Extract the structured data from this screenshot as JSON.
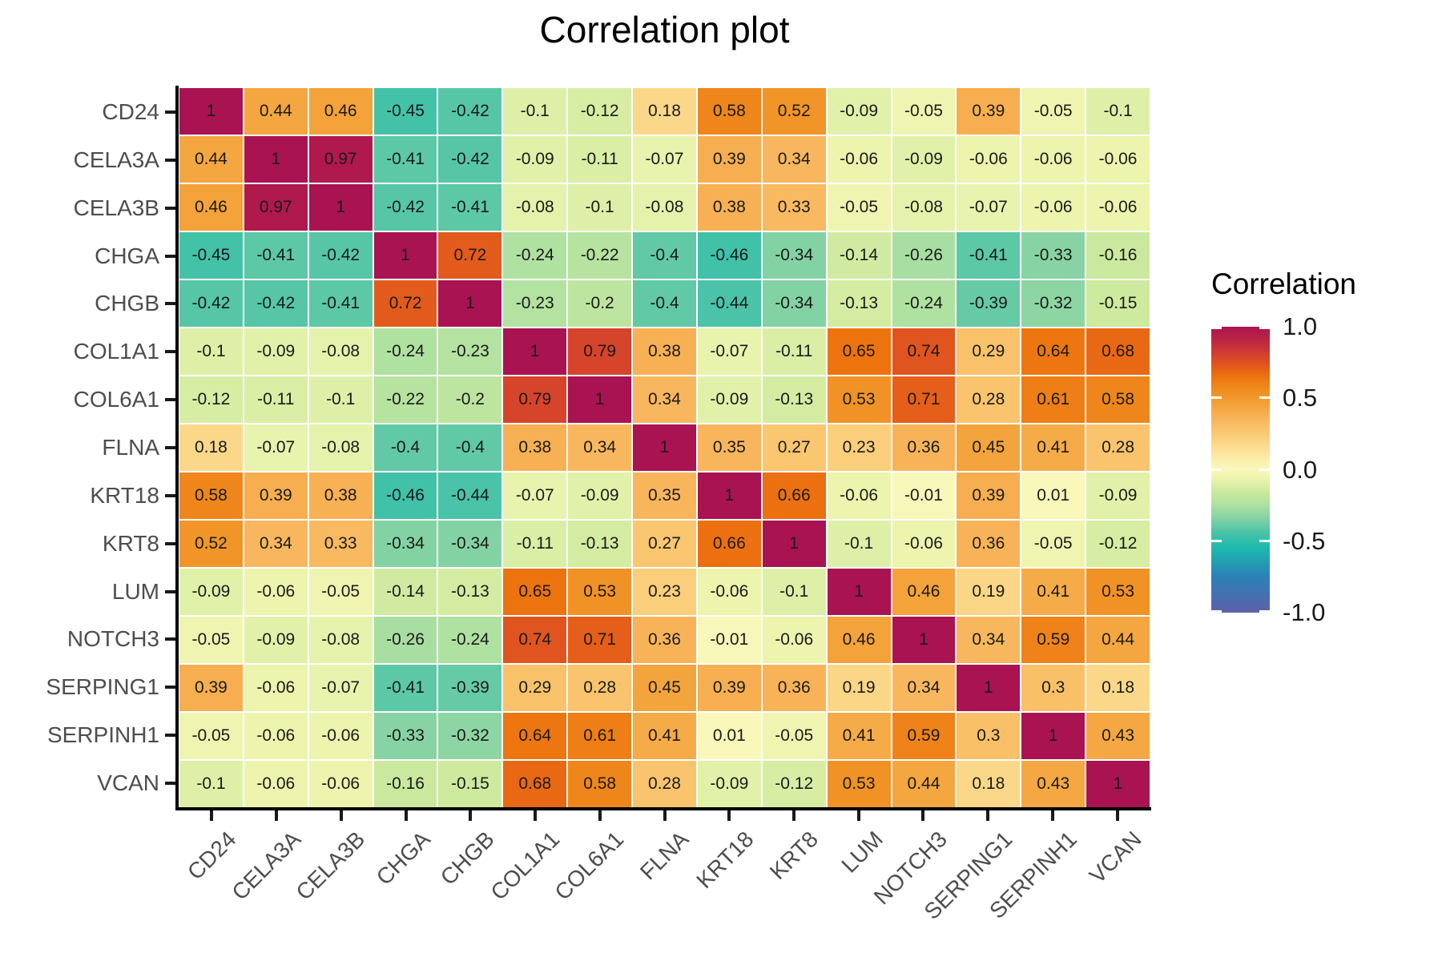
{
  "chart_data": {
    "type": "heatmap",
    "title": "Correlation plot",
    "labels": [
      "CD24",
      "CELA3A",
      "CELA3B",
      "CHGA",
      "CHGB",
      "COL1A1",
      "COL6A1",
      "FLNA",
      "KRT18",
      "KRT8",
      "LUM",
      "NOTCH3",
      "SERPING1",
      "SERPINH1",
      "VCAN"
    ],
    "matrix": [
      [
        1,
        0.44,
        0.46,
        -0.45,
        -0.42,
        -0.1,
        -0.12,
        0.18,
        0.58,
        0.52,
        -0.09,
        -0.05,
        0.39,
        -0.05,
        -0.1
      ],
      [
        0.44,
        1,
        0.97,
        -0.41,
        -0.42,
        -0.09,
        -0.11,
        -0.07,
        0.39,
        0.34,
        -0.06,
        -0.09,
        -0.06,
        -0.06,
        -0.06
      ],
      [
        0.46,
        0.97,
        1,
        -0.42,
        -0.41,
        -0.08,
        -0.1,
        -0.08,
        0.38,
        0.33,
        -0.05,
        -0.08,
        -0.07,
        -0.06,
        -0.06
      ],
      [
        -0.45,
        -0.41,
        -0.42,
        1,
        0.72,
        -0.24,
        -0.22,
        -0.4,
        -0.46,
        -0.34,
        -0.14,
        -0.26,
        -0.41,
        -0.33,
        -0.16
      ],
      [
        -0.42,
        -0.42,
        -0.41,
        0.72,
        1,
        -0.23,
        -0.2,
        -0.4,
        -0.44,
        -0.34,
        -0.13,
        -0.24,
        -0.39,
        -0.32,
        -0.15
      ],
      [
        -0.1,
        -0.09,
        -0.08,
        -0.24,
        -0.23,
        1,
        0.79,
        0.38,
        -0.07,
        -0.11,
        0.65,
        0.74,
        0.29,
        0.64,
        0.68
      ],
      [
        -0.12,
        -0.11,
        -0.1,
        -0.22,
        -0.2,
        0.79,
        1,
        0.34,
        -0.09,
        -0.13,
        0.53,
        0.71,
        0.28,
        0.61,
        0.58
      ],
      [
        0.18,
        -0.07,
        -0.08,
        -0.4,
        -0.4,
        0.38,
        0.34,
        1,
        0.35,
        0.27,
        0.23,
        0.36,
        0.45,
        0.41,
        0.28
      ],
      [
        0.58,
        0.39,
        0.38,
        -0.46,
        -0.44,
        -0.07,
        -0.09,
        0.35,
        1,
        0.66,
        -0.06,
        -0.01,
        0.39,
        0.01,
        -0.09
      ],
      [
        0.52,
        0.34,
        0.33,
        -0.34,
        -0.34,
        -0.11,
        -0.13,
        0.27,
        0.66,
        1,
        -0.1,
        -0.06,
        0.36,
        -0.05,
        -0.12
      ],
      [
        -0.09,
        -0.06,
        -0.05,
        -0.14,
        -0.13,
        0.65,
        0.53,
        0.23,
        -0.06,
        -0.1,
        1,
        0.46,
        0.19,
        0.41,
        0.53
      ],
      [
        -0.05,
        -0.09,
        -0.08,
        -0.26,
        -0.24,
        0.74,
        0.71,
        0.36,
        -0.01,
        -0.06,
        0.46,
        1,
        0.34,
        0.59,
        0.44
      ],
      [
        0.39,
        -0.06,
        -0.07,
        -0.41,
        -0.39,
        0.29,
        0.28,
        0.45,
        0.39,
        0.36,
        0.19,
        0.34,
        1,
        0.3,
        0.18
      ],
      [
        -0.05,
        -0.06,
        -0.06,
        -0.33,
        -0.32,
        0.64,
        0.61,
        0.41,
        0.01,
        -0.05,
        0.41,
        0.59,
        0.3,
        1,
        0.43
      ],
      [
        -0.1,
        -0.06,
        -0.06,
        -0.16,
        -0.15,
        0.68,
        0.58,
        0.28,
        -0.09,
        -0.12,
        0.53,
        0.44,
        0.18,
        0.43,
        1
      ]
    ],
    "value_range": [
      -1,
      1
    ],
    "grid": false,
    "legend": {
      "title": "Correlation",
      "position": "right",
      "tick_labels": [
        "1.0",
        "0.5",
        "0.0",
        "-0.5",
        "-1.0"
      ],
      "tick_values": [
        1,
        0.5,
        0,
        -0.5,
        -1
      ]
    },
    "colormap": [
      {
        "t": -1.0,
        "c": "#5E60A9"
      },
      {
        "t": -0.75,
        "c": "#2B81B8"
      },
      {
        "t": -0.55,
        "c": "#1CB9AC"
      },
      {
        "t": -0.45,
        "c": "#44C2A8"
      },
      {
        "t": -0.35,
        "c": "#7FD0A4"
      },
      {
        "t": -0.25,
        "c": "#ACE0A1"
      },
      {
        "t": -0.15,
        "c": "#CDEA9F"
      },
      {
        "t": -0.05,
        "c": "#EFF5B0"
      },
      {
        "t": 0.0,
        "c": "#FAF8BD"
      },
      {
        "t": 0.05,
        "c": "#FAF2AF"
      },
      {
        "t": 0.15,
        "c": "#FCDE92"
      },
      {
        "t": 0.25,
        "c": "#FACA74"
      },
      {
        "t": 0.35,
        "c": "#F8B55C"
      },
      {
        "t": 0.45,
        "c": "#F4A43D"
      },
      {
        "t": 0.55,
        "c": "#F08E20"
      },
      {
        "t": 0.65,
        "c": "#ED730E"
      },
      {
        "t": 0.75,
        "c": "#DF5022"
      },
      {
        "t": 0.85,
        "c": "#C93239"
      },
      {
        "t": 1.0,
        "c": "#A91352"
      }
    ],
    "colors": {
      "title": "#000000",
      "cell_text": "#1a1a1a",
      "axis_label": "#4d4d4d",
      "axis_line": "#000000",
      "grid_gap": "#ffffff"
    }
  }
}
